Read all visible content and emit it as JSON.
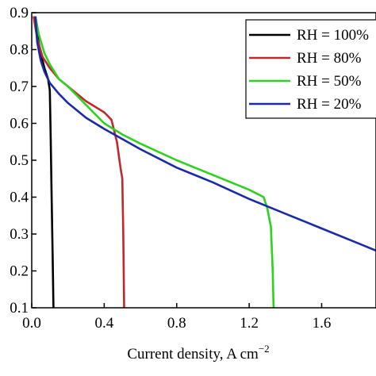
{
  "chart_data": {
    "type": "line",
    "title": "",
    "xlabel_main": "Current density, A cm",
    "xlabel_sup": "−2",
    "ylabel": "",
    "xlim": [
      0.0,
      1.9
    ],
    "ylim": [
      0.1,
      0.9
    ],
    "xticks": [
      {
        "value": 0.0,
        "label": "0.0"
      },
      {
        "value": 0.4,
        "label": "0.4"
      },
      {
        "value": 0.8,
        "label": "0.8"
      },
      {
        "value": 1.2,
        "label": "1.2"
      },
      {
        "value": 1.6,
        "label": "1.6"
      }
    ],
    "yticks": [
      {
        "value": 0.1,
        "label": "0.1"
      },
      {
        "value": 0.2,
        "label": "0.2"
      },
      {
        "value": 0.3,
        "label": "0.3"
      },
      {
        "value": 0.4,
        "label": "0.4"
      },
      {
        "value": 0.5,
        "label": "0.5"
      },
      {
        "value": 0.6,
        "label": "0.6"
      },
      {
        "value": 0.7,
        "label": "0.7"
      },
      {
        "value": 0.8,
        "label": "0.8"
      },
      {
        "value": 0.9,
        "label": "0.9"
      }
    ],
    "grid": false,
    "legend_position": "top-right",
    "series": [
      {
        "name": "RH = 100%",
        "color": "#000000",
        "x": [
          0.02,
          0.03,
          0.05,
          0.07,
          0.09,
          0.1,
          0.105,
          0.11,
          0.115,
          0.12
        ],
        "y": [
          0.89,
          0.84,
          0.79,
          0.75,
          0.72,
          0.69,
          0.55,
          0.4,
          0.25,
          0.1
        ]
      },
      {
        "name": "RH = 80%",
        "color": "#c0292b",
        "x": [
          0.01,
          0.03,
          0.06,
          0.1,
          0.15,
          0.2,
          0.3,
          0.4,
          0.44,
          0.47,
          0.49,
          0.5,
          0.505,
          0.51
        ],
        "y": [
          0.89,
          0.83,
          0.78,
          0.75,
          0.72,
          0.7,
          0.66,
          0.63,
          0.61,
          0.55,
          0.48,
          0.45,
          0.3,
          0.1
        ]
      },
      {
        "name": "RH = 50%",
        "color": "#2ed11f",
        "x": [
          0.02,
          0.04,
          0.07,
          0.1,
          0.15,
          0.2,
          0.3,
          0.4,
          0.5,
          0.6,
          0.8,
          1.0,
          1.2,
          1.28,
          1.3,
          1.32,
          1.33,
          1.335
        ],
        "y": [
          0.89,
          0.84,
          0.79,
          0.76,
          0.72,
          0.7,
          0.65,
          0.6,
          0.57,
          0.545,
          0.5,
          0.46,
          0.42,
          0.4,
          0.37,
          0.32,
          0.2,
          0.1
        ]
      },
      {
        "name": "RH = 20%",
        "color": "#1a2aa8",
        "x": [
          0.02,
          0.03,
          0.05,
          0.07,
          0.1,
          0.15,
          0.2,
          0.3,
          0.4,
          0.6,
          0.8,
          1.0,
          1.2,
          1.4,
          1.6,
          1.8,
          1.9
        ],
        "y": [
          0.89,
          0.82,
          0.77,
          0.74,
          0.71,
          0.68,
          0.655,
          0.615,
          0.585,
          0.53,
          0.48,
          0.44,
          0.395,
          0.355,
          0.315,
          0.275,
          0.255
        ]
      }
    ]
  }
}
